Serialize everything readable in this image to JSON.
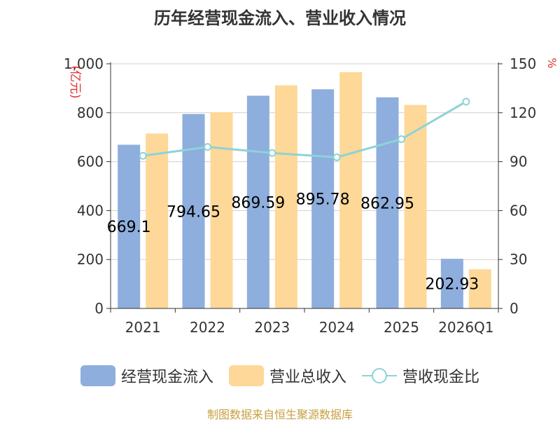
{
  "chart_data": {
    "type": "bar",
    "title": "历年经营现金流入、营业收入情况",
    "categories": [
      "2021",
      "2022",
      "2023",
      "2024",
      "2025",
      "2026Q1"
    ],
    "series": [
      {
        "name": "经营现金流入",
        "type": "bar",
        "axis": "left",
        "color": "#8eaedd",
        "values": [
          669.1,
          794.65,
          869.59,
          895.78,
          862.95,
          202.93
        ],
        "labels": [
          "669.1",
          "794.65",
          "869.59",
          "895.78",
          "862.95",
          "202.93"
        ]
      },
      {
        "name": "营业总收入",
        "type": "bar",
        "axis": "left",
        "color": "#fed898",
        "values": [
          715,
          802,
          912,
          966,
          832,
          160
        ]
      },
      {
        "name": "营收现金比",
        "type": "line",
        "axis": "right",
        "color": "#8dd3d6",
        "values": [
          93.6,
          99.0,
          95.3,
          92.7,
          103.8,
          126.8
        ]
      }
    ],
    "ylabel_left": "亿元",
    "ylabel_right": "%",
    "ylim_left": [
      0,
      1000
    ],
    "ylim_right": [
      0,
      150
    ],
    "yticks_left": [
      "0",
      "200",
      "400",
      "600",
      "800",
      "1,000"
    ],
    "yticks_right": [
      "0",
      "30",
      "60",
      "90",
      "120",
      "150"
    ],
    "grid": true,
    "legend_position": "bottom"
  },
  "source_note": "制图数据来自恒生聚源数据库"
}
